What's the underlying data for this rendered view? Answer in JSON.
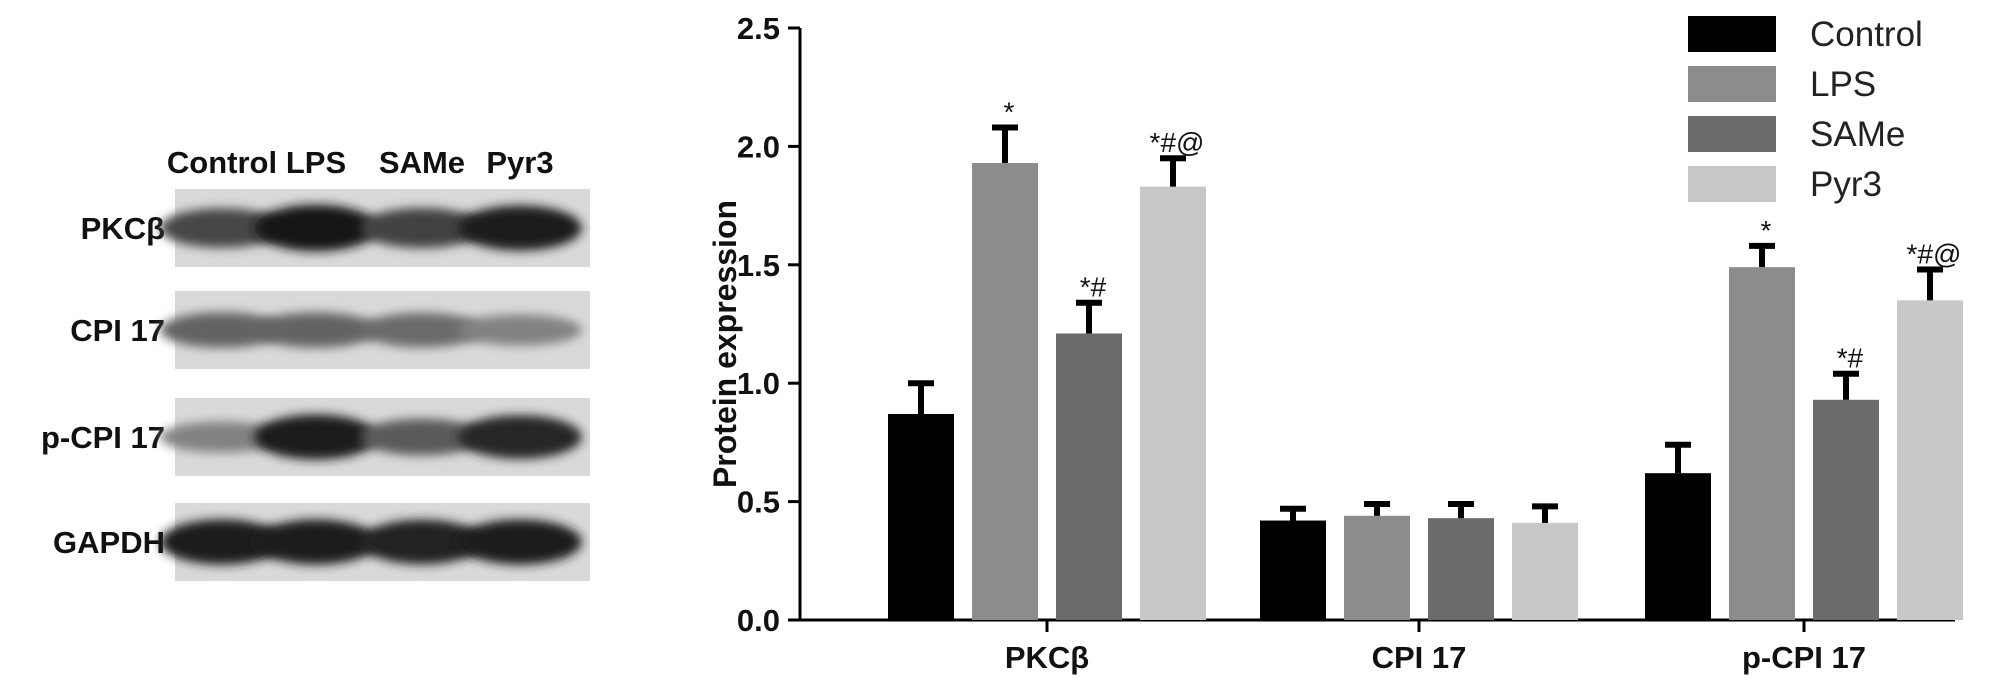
{
  "blot": {
    "lanes": [
      "Control",
      "LPS",
      "SAMe",
      "Pyr3"
    ],
    "rows": [
      {
        "label": "PKCβ",
        "intensity": [
          0.7,
          0.95,
          0.72,
          0.9
        ]
      },
      {
        "label": "CPI 17",
        "intensity": [
          0.55,
          0.55,
          0.52,
          0.4
        ]
      },
      {
        "label": "p-CPI 17",
        "intensity": [
          0.4,
          0.9,
          0.6,
          0.85
        ]
      },
      {
        "label": "GAPDH",
        "intensity": [
          0.9,
          0.9,
          0.88,
          0.9
        ]
      }
    ]
  },
  "chart_data": {
    "type": "bar",
    "categories": [
      "PKCβ",
      "CPI 17",
      "p-CPI 17"
    ],
    "ylabel": "Protein expression",
    "ylim": [
      0,
      2.5
    ],
    "yticks": [
      "0.0",
      "0.5",
      "1.0",
      "1.5",
      "2.0",
      "2.5"
    ],
    "legend_position": "top-right",
    "series": [
      {
        "name": "Control",
        "color": "#000000",
        "values": [
          0.87,
          0.42,
          0.62
        ],
        "errors": [
          0.13,
          0.05,
          0.12
        ],
        "annotations": [
          "",
          "",
          ""
        ]
      },
      {
        "name": "LPS",
        "color": "#8c8c8c",
        "values": [
          1.93,
          0.44,
          1.49
        ],
        "errors": [
          0.15,
          0.05,
          0.09
        ],
        "annotations": [
          "*",
          "",
          "*"
        ]
      },
      {
        "name": "SAMe",
        "color": "#6b6b6b",
        "values": [
          1.21,
          0.43,
          0.93
        ],
        "errors": [
          0.13,
          0.06,
          0.11
        ],
        "annotations": [
          "*#",
          "",
          "*#"
        ]
      },
      {
        "name": "Pyr3",
        "color": "#c8c8c8",
        "values": [
          1.83,
          0.41,
          1.35
        ],
        "errors": [
          0.12,
          0.07,
          0.13
        ],
        "annotations": [
          "*#@",
          "",
          "*#@"
        ]
      }
    ]
  }
}
